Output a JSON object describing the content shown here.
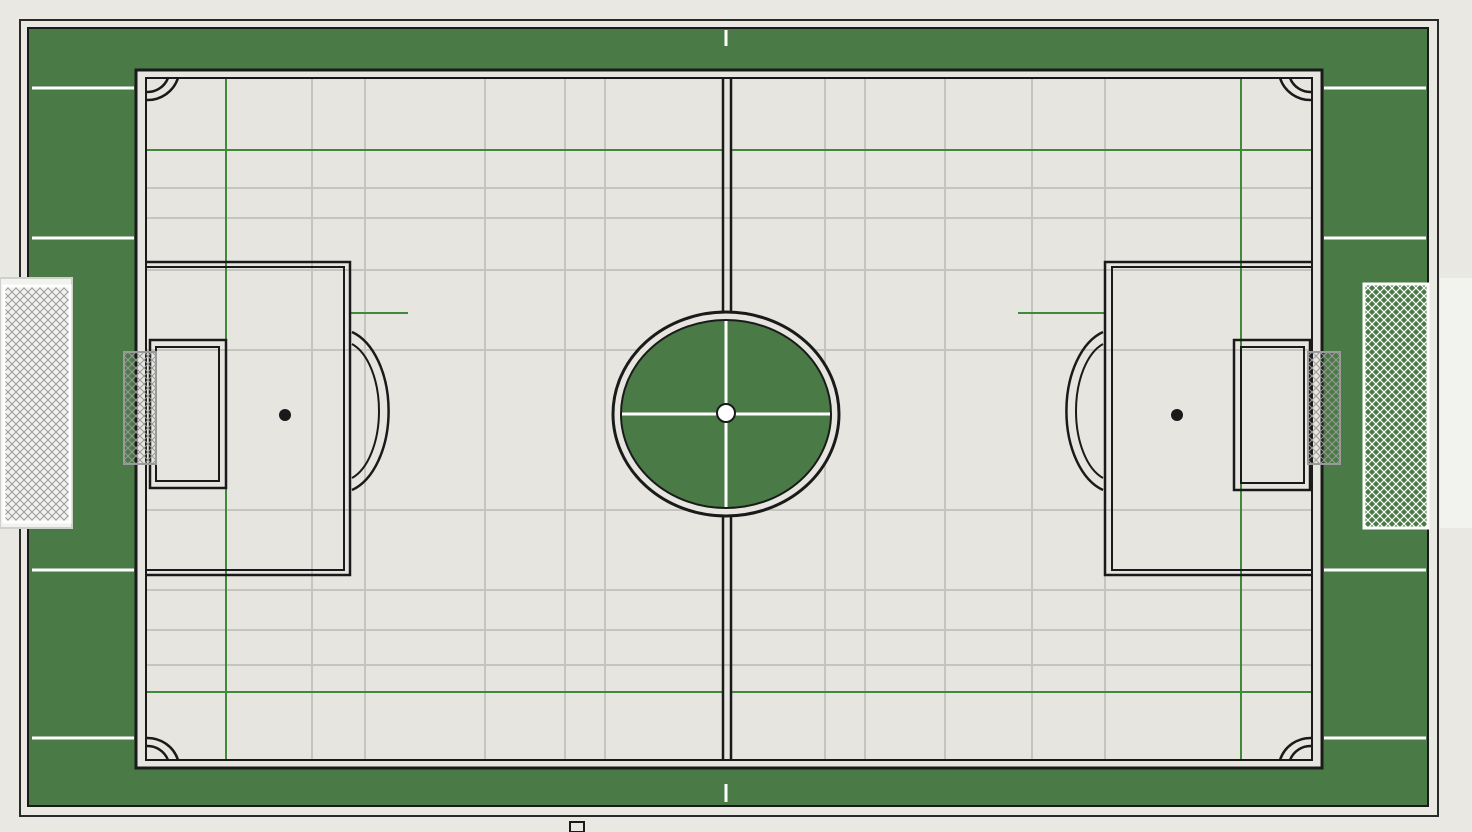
{
  "pitch": {
    "colors": {
      "background": "#e9e8e3",
      "turf": "#4a7a45",
      "field": "#e6e5e0",
      "line": "#1a1a1a",
      "white_line": "#ffffff",
      "grid": "#c2c2be",
      "green_grid": "#3f8a3a"
    },
    "features": {
      "center_circle": "filled-green",
      "goals": 2,
      "penalty_spots": 2,
      "corner_arcs": 4
    }
  }
}
